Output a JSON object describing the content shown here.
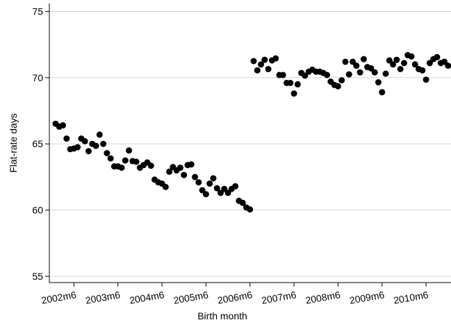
{
  "chart_data": {
    "type": "scatter",
    "x_label": "Birth month",
    "y_label": "Flat-rate days",
    "x": [
      504,
      505,
      506,
      507,
      508,
      509,
      510,
      511,
      512,
      513,
      514,
      515,
      516,
      517,
      518,
      519,
      520,
      521,
      522,
      523,
      524,
      525,
      526,
      527,
      528,
      529,
      530,
      531,
      532,
      533,
      534,
      535,
      536,
      537,
      538,
      539,
      540,
      541,
      542,
      543,
      544,
      545,
      546,
      547,
      548,
      549,
      550,
      551,
      552,
      553,
      554,
      555,
      556,
      557,
      558,
      559,
      560,
      561,
      562,
      563,
      564,
      565,
      566,
      567,
      568,
      569,
      570,
      571,
      572,
      573,
      574,
      575,
      576,
      577,
      578,
      579,
      580,
      581,
      582,
      583,
      584,
      585,
      586,
      587,
      588,
      589,
      590,
      591,
      592,
      593,
      594,
      595,
      596,
      597,
      598,
      599,
      600,
      601,
      602,
      603,
      604,
      605,
      606,
      607,
      608,
      609,
      610,
      611
    ],
    "values": [
      66.52,
      66.3,
      66.4,
      65.4,
      64.6,
      64.65,
      64.75,
      65.4,
      65.2,
      64.45,
      65.0,
      64.85,
      65.7,
      65.0,
      64.3,
      63.9,
      63.3,
      63.3,
      63.2,
      63.75,
      64.5,
      63.7,
      63.65,
      63.2,
      63.4,
      63.6,
      63.35,
      62.3,
      62.1,
      62.0,
      61.75,
      62.9,
      63.25,
      63.0,
      63.2,
      62.65,
      63.4,
      63.45,
      62.5,
      62.1,
      61.5,
      61.2,
      62.0,
      62.4,
      61.65,
      61.3,
      61.6,
      61.3,
      61.6,
      61.8,
      60.7,
      60.55,
      60.2,
      60.05,
      71.25,
      70.55,
      71.0,
      71.35,
      70.65,
      71.3,
      71.45,
      70.2,
      70.2,
      69.6,
      69.6,
      68.8,
      69.5,
      70.35,
      70.15,
      70.45,
      70.6,
      70.45,
      70.45,
      70.35,
      70.2,
      69.7,
      69.45,
      69.35,
      69.8,
      71.2,
      70.25,
      71.2,
      70.9,
      70.4,
      71.4,
      70.8,
      70.7,
      70.4,
      69.65,
      68.9,
      70.3,
      71.3,
      71.0,
      71.35,
      70.65,
      71.1,
      71.7,
      71.6,
      71.0,
      70.65,
      70.55,
      69.85,
      71.1,
      71.4,
      71.55,
      71.1,
      71.2,
      70.9
    ],
    "color": "#000000",
    "xlim": [
      502.3,
      611.8
    ],
    "xticks": [
      {
        "value": 509,
        "label": "2002m6"
      },
      {
        "value": 521,
        "label": "2003m6"
      },
      {
        "value": 533,
        "label": "2004m6"
      },
      {
        "value": 545,
        "label": "2005m6"
      },
      {
        "value": 557,
        "label": "2006m6"
      },
      {
        "value": 569,
        "label": "2007m6"
      },
      {
        "value": 581,
        "label": "2008m6"
      },
      {
        "value": 593,
        "label": "2009m6"
      },
      {
        "value": 605,
        "label": "2010m6"
      }
    ],
    "ylim": [
      54.53,
      75.6
    ],
    "yticks": [
      55,
      60,
      65,
      70,
      75
    ],
    "grid": true
  }
}
